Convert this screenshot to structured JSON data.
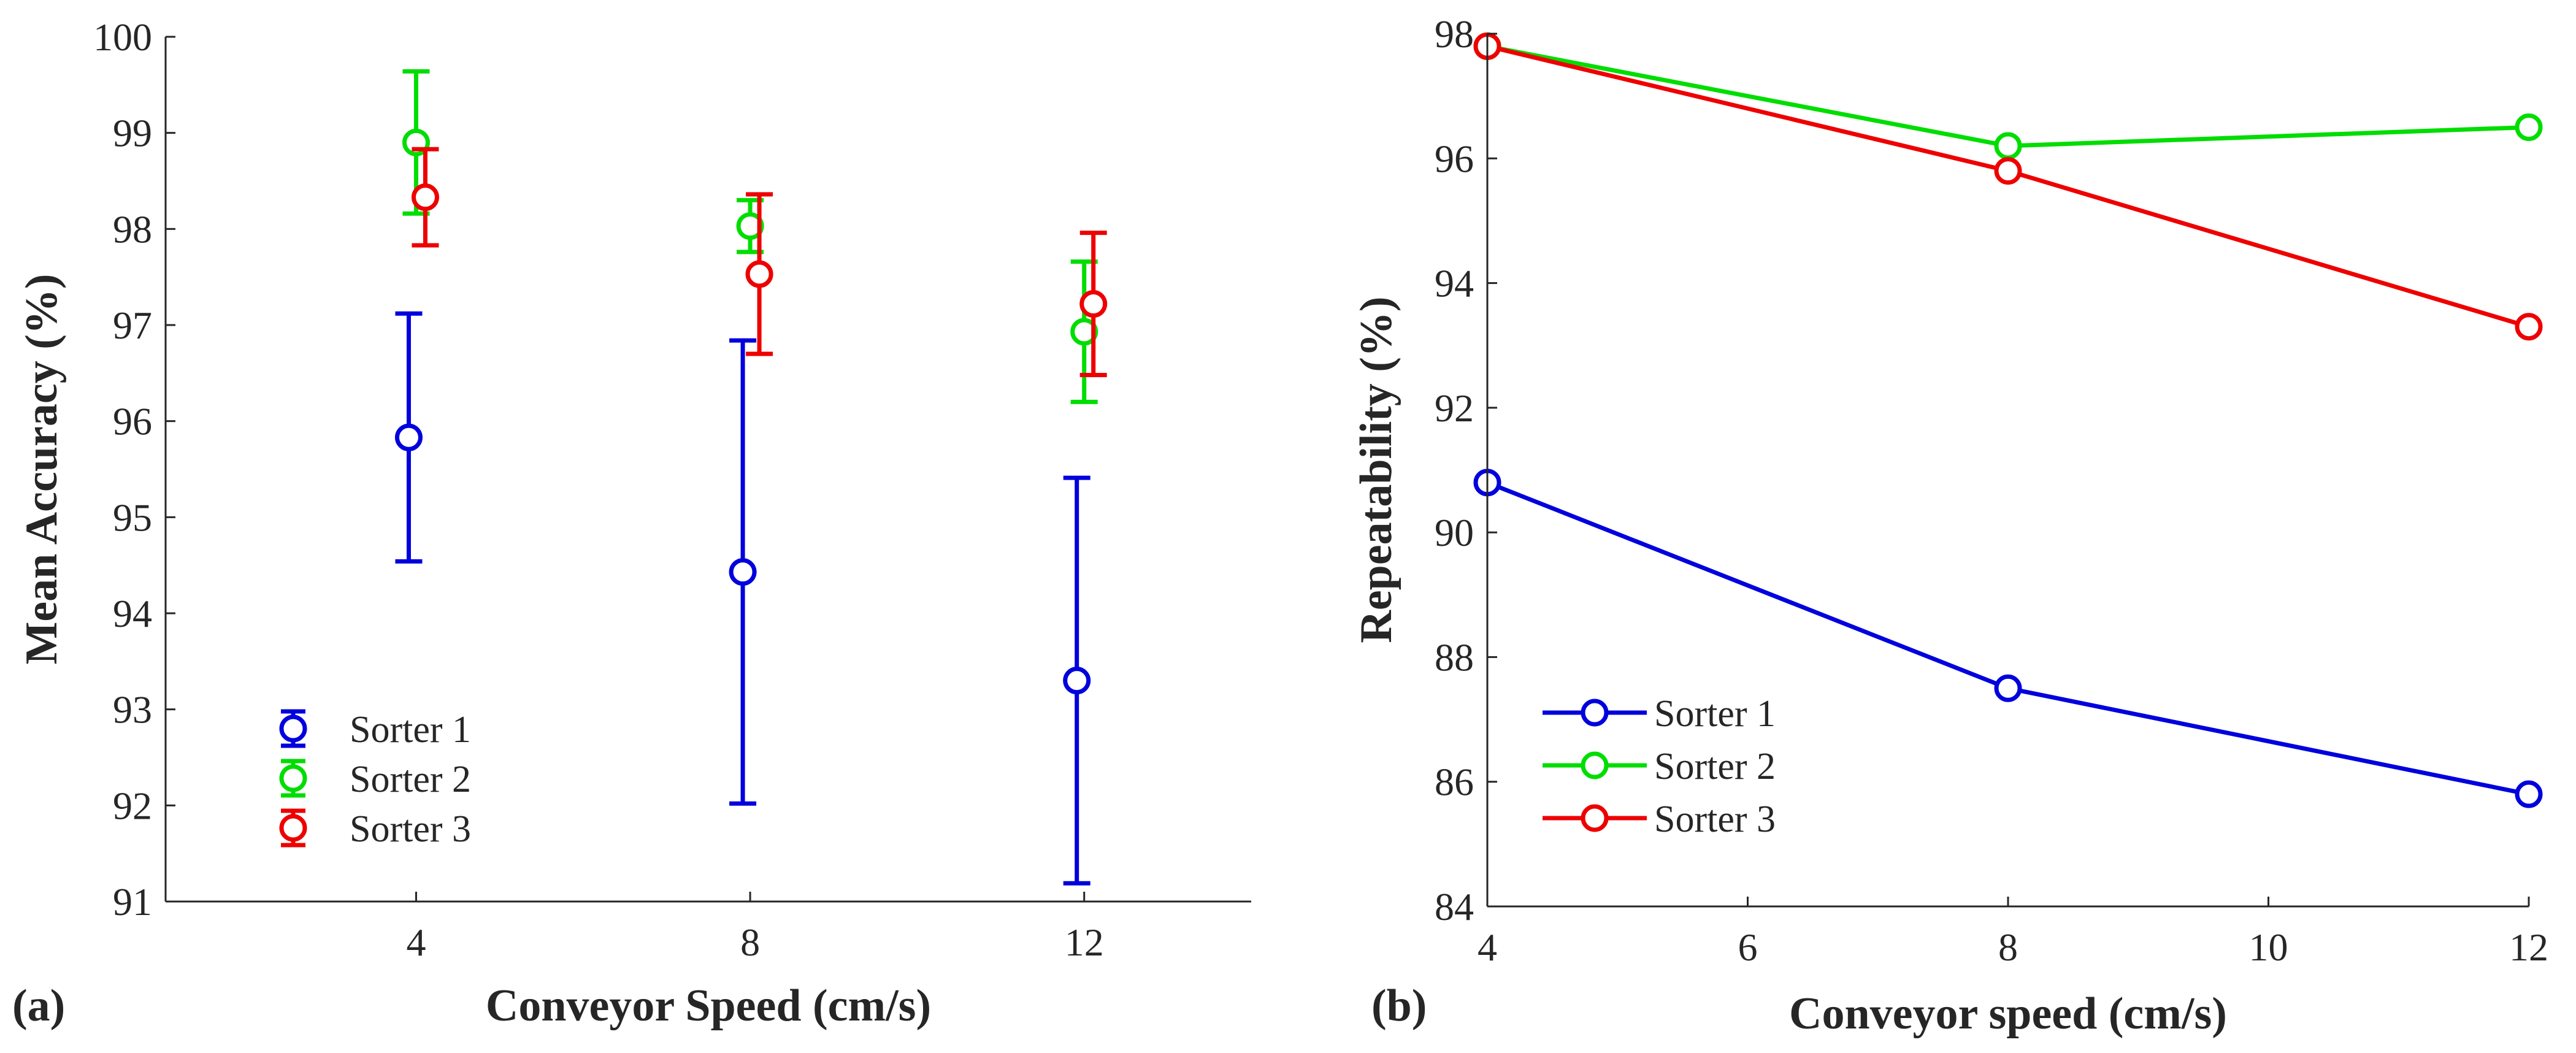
{
  "chart_data": [
    {
      "panel_label": "(a)",
      "type": "scatter",
      "xlabel": "Conveyor Speed (cm/s)",
      "ylabel": "Mean Accuracy (%)",
      "xlim": [
        1,
        14
      ],
      "ylim": [
        91,
        100
      ],
      "xticks": [
        4,
        8,
        12
      ],
      "yticks": [
        91,
        92,
        93,
        94,
        95,
        96,
        97,
        98,
        99,
        100
      ],
      "error_bars": true,
      "legend_position": "bottom-left",
      "series": [
        {
          "name": "Sorter 1",
          "color": "#0000dd",
          "x": [
            4,
            8,
            12
          ],
          "y": [
            95.83,
            94.43,
            93.3
          ],
          "err": [
            1.29,
            2.41,
            2.11
          ]
        },
        {
          "name": "Sorter 2",
          "color": "#00dd00",
          "x": [
            4,
            8,
            12
          ],
          "y": [
            98.9,
            98.03,
            96.93
          ],
          "err": [
            0.74,
            0.27,
            0.73
          ]
        },
        {
          "name": "Sorter 3",
          "color": "#ee0000",
          "x": [
            4,
            8,
            12
          ],
          "y": [
            98.33,
            97.53,
            97.22
          ],
          "err": [
            0.5,
            0.83,
            0.74
          ]
        }
      ]
    },
    {
      "panel_label": "(b)",
      "type": "line",
      "xlabel": "Conveyor speed (cm/s)",
      "ylabel": "Repeatability (%)",
      "xlim": [
        4,
        12
      ],
      "ylim": [
        84,
        98
      ],
      "xticks": [
        4,
        6,
        8,
        10,
        12
      ],
      "yticks": [
        84,
        86,
        88,
        90,
        92,
        94,
        96,
        98
      ],
      "markers": "circle",
      "legend_position": "bottom-left",
      "series": [
        {
          "name": "Sorter 1",
          "color": "#0000dd",
          "x": [
            4,
            8,
            12
          ],
          "y": [
            90.8,
            87.5,
            85.8
          ]
        },
        {
          "name": "Sorter 2",
          "color": "#00dd00",
          "x": [
            4,
            8,
            12
          ],
          "y": [
            97.8,
            96.2,
            96.5
          ]
        },
        {
          "name": "Sorter 3",
          "color": "#ee0000",
          "x": [
            4,
            8,
            12
          ],
          "y": [
            97.8,
            95.8,
            93.3
          ]
        }
      ]
    }
  ]
}
